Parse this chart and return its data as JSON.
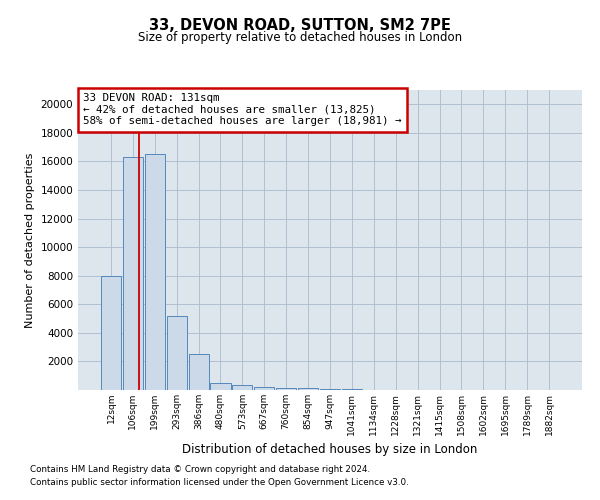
{
  "title1": "33, DEVON ROAD, SUTTON, SM2 7PE",
  "title2": "Size of property relative to detached houses in London",
  "xlabel": "Distribution of detached houses by size in London",
  "ylabel": "Number of detached properties",
  "categories": [
    "12sqm",
    "106sqm",
    "199sqm",
    "293sqm",
    "386sqm",
    "480sqm",
    "573sqm",
    "667sqm",
    "760sqm",
    "854sqm",
    "947sqm",
    "1041sqm",
    "1134sqm",
    "1228sqm",
    "1321sqm",
    "1415sqm",
    "1508sqm",
    "1602sqm",
    "1695sqm",
    "1789sqm",
    "1882sqm"
  ],
  "values": [
    8000,
    16300,
    16500,
    5200,
    2500,
    500,
    380,
    220,
    160,
    110,
    80,
    40,
    10,
    5,
    3,
    2,
    1,
    1,
    1,
    1,
    1
  ],
  "bar_color": "#ccd9e8",
  "bar_edge_color": "#5588bb",
  "red_line_index": 1.28,
  "annotation_text": "33 DEVON ROAD: 131sqm\n← 42% of detached houses are smaller (13,825)\n58% of semi-detached houses are larger (18,981) →",
  "annotation_box_color": "#ffffff",
  "annotation_box_edge": "#cc0000",
  "red_line_color": "#cc0000",
  "ylim": [
    0,
    21000
  ],
  "yticks": [
    0,
    2000,
    4000,
    6000,
    8000,
    10000,
    12000,
    14000,
    16000,
    18000,
    20000
  ],
  "grid_color": "#aabbcc",
  "bg_color": "#dde5ed",
  "footer1": "Contains HM Land Registry data © Crown copyright and database right 2024.",
  "footer2": "Contains public sector information licensed under the Open Government Licence v3.0."
}
